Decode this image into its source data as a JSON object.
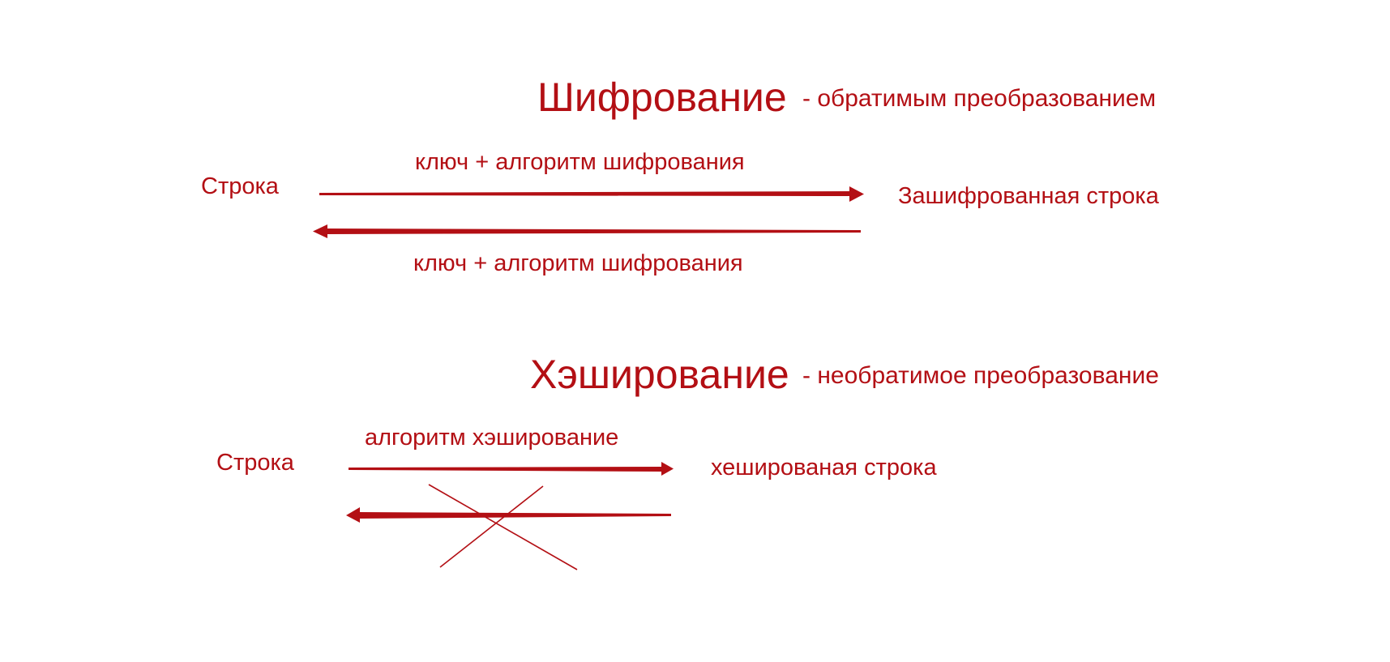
{
  "colors": {
    "accent": "#b30f14"
  },
  "encryption": {
    "title": "Шифрование",
    "subtitle": "- обратимым преобразованием",
    "source": "Строка",
    "target": "Зашифрованная строка",
    "forward_label": "ключ + алгоритм шифрования",
    "backward_label": "ключ + алгоритм шифрования"
  },
  "hashing": {
    "title": "Хэширование",
    "subtitle": "- необратимое преобразование",
    "source": "Строка",
    "target": "хешированая строка",
    "forward_label": "алгоритм хэширование",
    "reverse_blocked": true
  }
}
